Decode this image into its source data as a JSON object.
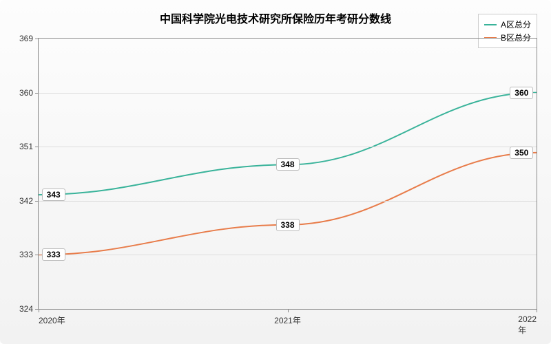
{
  "chart": {
    "type": "line",
    "title": "中国科学院光电技术研究所保险历年考研分数线",
    "title_fontsize": 16,
    "background_gradient": [
      "#fdfdfd",
      "#f2f2f2"
    ],
    "grid_color": "#dddddd",
    "border_color": "#888888",
    "label_fontsize": 12,
    "ylim": [
      324,
      369
    ],
    "ytick_step": 9,
    "yticks": [
      324,
      333,
      342,
      351,
      360,
      369
    ],
    "x_categories": [
      "2020年",
      "2021年",
      "2022年"
    ],
    "series": [
      {
        "name": "A区总分",
        "color": "#39b39a",
        "values": [
          343,
          348,
          360
        ],
        "line_width": 2
      },
      {
        "name": "B区总分",
        "color": "#e87c4a",
        "values": [
          333,
          338,
          350
        ],
        "line_width": 2
      }
    ],
    "legend_position": "top-right",
    "data_label_bg": "#ffffff",
    "data_label_border": "#bbbbbb"
  }
}
